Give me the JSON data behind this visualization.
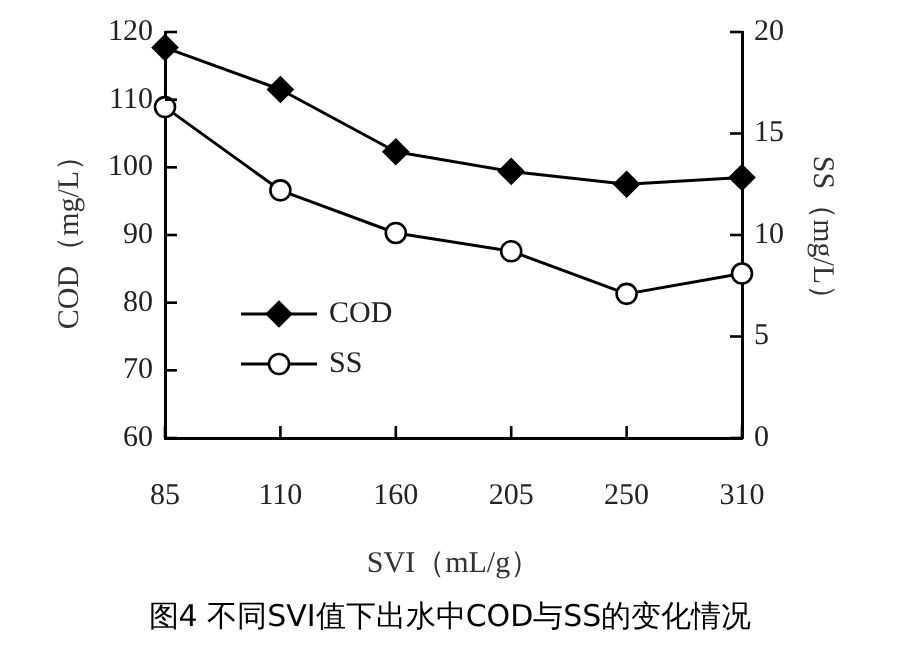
{
  "chart_data": {
    "type": "line",
    "title": "图4  不同SVI值下出水中COD与SS的变化情况",
    "xlabel": "SVI（mL/g）",
    "ylabel": "COD（mg/L）",
    "y2label": "SS（mg/L）",
    "categories": [
      "85",
      "110",
      "160",
      "205",
      "250",
      "310"
    ],
    "series": [
      {
        "name": "COD",
        "color": "#000000",
        "marker": "diamond",
        "values": [
          117.7,
          111.5,
          102.3,
          99.4,
          97.5,
          98.5
        ]
      },
      {
        "name": "SS",
        "color": "#000000",
        "marker": "circle",
        "axis": "y2",
        "values": [
          16.3,
          12.2,
          10.1,
          9.2,
          7.1,
          8.1
        ]
      }
    ],
    "ylim": [
      60,
      120
    ],
    "yticks": [
      60,
      70,
      80,
      90,
      100,
      110,
      120
    ],
    "y2lim": [
      0,
      20
    ],
    "y2ticks": [
      0,
      5,
      10,
      15,
      20
    ],
    "grid": false,
    "legend": "bottom left",
    "line_style": "solid"
  }
}
